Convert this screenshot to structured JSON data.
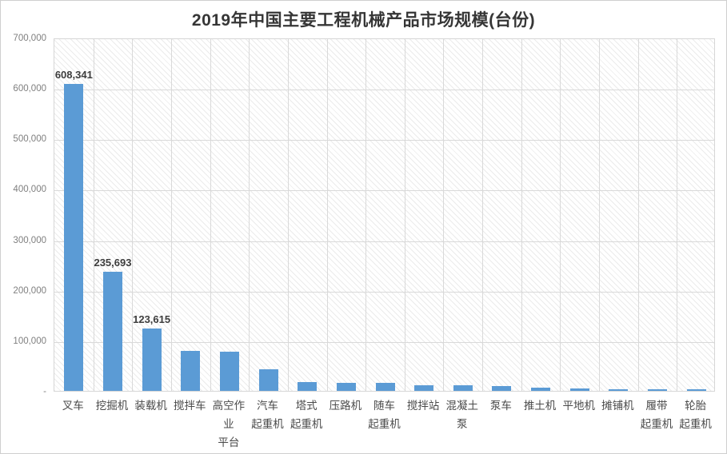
{
  "chart_data": {
    "type": "bar",
    "title": "2019年中国主要工程机械产品市场规模(台份)",
    "xlabel": "",
    "ylabel": "",
    "ylim": [
      0,
      700000
    ],
    "grid": true,
    "legend": "none",
    "bar_color": "#5B9BD5",
    "gridline_color": "#d9d9d9",
    "categories": [
      "叉车",
      "挖掘机",
      "装载机",
      "搅拌车",
      "高空作业\n平台",
      "汽车\n起重机",
      "塔式\n起重机",
      "压路机",
      "随车\n起重机",
      "搅拌站",
      "混凝土泵",
      "泵车",
      "推土机",
      "平地机",
      "摊铺机",
      "履带\n起重机",
      "轮胎\n起重机"
    ],
    "values": [
      608341,
      235693,
      123615,
      80000,
      77000,
      43000,
      17500,
      16500,
      16000,
      11500,
      10500,
      9000,
      6500,
      4800,
      3400,
      3200,
      2800
    ],
    "data_labels": [
      "608,341",
      "235,693",
      "123,615",
      "",
      "",
      "",
      "",
      "",
      "",
      "",
      "",
      "",
      "",
      "",
      "",
      "",
      ""
    ],
    "y_ticks": [
      {
        "v": 0,
        "label": "-"
      },
      {
        "v": 100000,
        "label": "100,000"
      },
      {
        "v": 200000,
        "label": "200,000"
      },
      {
        "v": 300000,
        "label": "300,000"
      },
      {
        "v": 400000,
        "label": "400,000"
      },
      {
        "v": 500000,
        "label": "500,000"
      },
      {
        "v": 600000,
        "label": "600,000"
      },
      {
        "v": 700000,
        "label": "700,000"
      }
    ]
  }
}
